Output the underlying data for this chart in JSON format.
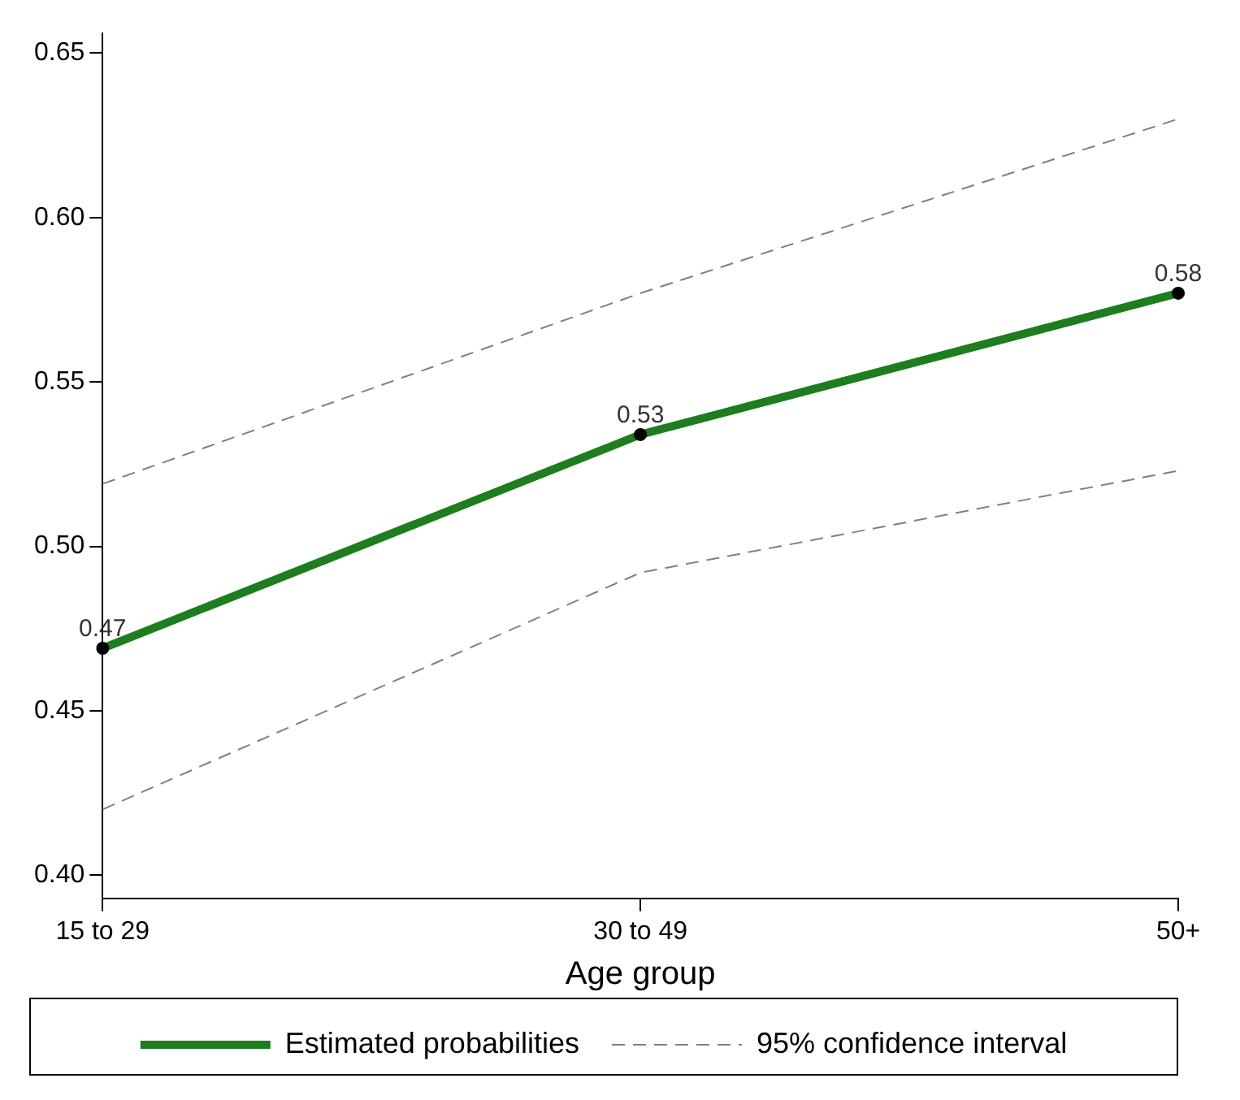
{
  "chart_data": {
    "type": "line",
    "categories": [
      "15 to 29",
      "30 to 49",
      "50+"
    ],
    "xlabel": "Age group",
    "series": [
      {
        "name": "Estimated probabilities",
        "color": "#1e7d1e",
        "values": [
          0.469,
          0.534,
          0.577
        ],
        "value_labels": [
          "0.47",
          "0.53",
          "0.58"
        ],
        "marker": "circle",
        "line_style": "solid"
      },
      {
        "name": "95% confidence interval",
        "color": "#808080",
        "values": [
          0.519,
          0.577,
          0.63
        ],
        "marker": "none",
        "line_style": "dashed"
      },
      {
        "color": "#808080",
        "values": [
          0.42,
          0.492,
          0.523
        ],
        "marker": "none",
        "line_style": "dashed"
      }
    ],
    "ylim": [
      0.393,
      0.656
    ],
    "yticks": [
      {
        "value": 0.4,
        "label": "0.40"
      },
      {
        "value": 0.45,
        "label": "0.45"
      },
      {
        "value": 0.5,
        "label": "0.50"
      },
      {
        "value": 0.55,
        "label": "0.55"
      },
      {
        "value": 0.6,
        "label": "0.60"
      },
      {
        "value": 0.65,
        "label": "0.65"
      }
    ],
    "grid": false,
    "legend": "bottom"
  }
}
